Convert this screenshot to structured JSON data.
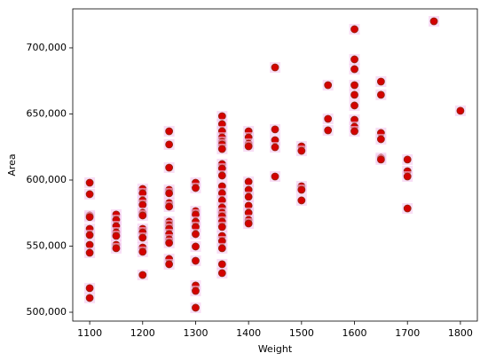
{
  "chart_data": {
    "type": "scatter",
    "x_label": "Weight",
    "y_label": "Area",
    "color": "#d40000",
    "x": [
      1100,
      1100,
      1100,
      1100,
      1100,
      1100,
      1100,
      1100,
      1100,
      1100,
      1150,
      1150,
      1150,
      1150,
      1150,
      1150,
      1150,
      1200,
      1200,
      1200,
      1200,
      1200,
      1200,
      1200,
      1200,
      1200,
      1200,
      1200,
      1200,
      1250,
      1250,
      1250,
      1250,
      1250,
      1250,
      1250,
      1250,
      1250,
      1250,
      1250,
      1250,
      1250,
      1250,
      1250,
      1300,
      1300,
      1300,
      1300,
      1300,
      1300,
      1300,
      1300,
      1300,
      1300,
      1300,
      1300,
      1350,
      1350,
      1350,
      1350,
      1350,
      1350,
      1350,
      1350,
      1350,
      1350,
      1350,
      1350,
      1350,
      1350,
      1350,
      1350,
      1350,
      1350,
      1350,
      1350,
      1350,
      1350,
      1350,
      1400,
      1400,
      1400,
      1400,
      1400,
      1400,
      1400,
      1400,
      1400,
      1400,
      1400,
      1450,
      1450,
      1450,
      1450,
      1450,
      1500,
      1500,
      1500,
      1500,
      1500,
      1550,
      1550,
      1550,
      1600,
      1600,
      1600,
      1600,
      1600,
      1600,
      1600,
      1600,
      1600,
      1650,
      1650,
      1650,
      1650,
      1650,
      1650,
      1700,
      1700,
      1700,
      1700,
      1750,
      1800
    ],
    "values": [
      598000,
      589300,
      573200,
      572000,
      563100,
      558400,
      551000,
      545000,
      518200,
      510800,
      573900,
      569800,
      565100,
      560400,
      557700,
      551000,
      548400,
      593300,
      590000,
      584600,
      581200,
      575200,
      573200,
      563100,
      560400,
      556400,
      549000,
      545700,
      528200,
      636900,
      626900,
      609400,
      592600,
      590000,
      582600,
      579900,
      568500,
      565800,
      563100,
      559100,
      555100,
      552400,
      540300,
      536300,
      598000,
      594000,
      576500,
      573900,
      568500,
      564500,
      559100,
      549700,
      538900,
      520200,
      516100,
      503400,
      648300,
      642300,
      636900,
      632200,
      628900,
      626900,
      623500,
      612100,
      608700,
      603400,
      595300,
      590000,
      584600,
      579200,
      575200,
      572500,
      568500,
      564500,
      557700,
      553700,
      548400,
      536300,
      529600,
      636900,
      632200,
      627500,
      625500,
      598700,
      592600,
      587300,
      580600,
      575200,
      569800,
      567100,
      685200,
      638300,
      630200,
      624800,
      602700,
      625500,
      622100,
      595300,
      592600,
      584600,
      671800,
      646300,
      637600,
      714100,
      691300,
      683900,
      671800,
      664500,
      656400,
      645600,
      640300,
      636900,
      674500,
      664500,
      635600,
      630900,
      616800,
      615500,
      615500,
      606700,
      602700,
      578500,
      720100,
      652400
    ],
    "xlim": [
      1068,
      1832
    ],
    "ylim": [
      493300,
      729500
    ],
    "xticks": [
      1100,
      1200,
      1300,
      1400,
      1500,
      1600,
      1700,
      1800
    ],
    "yticks": [
      {
        "value": 500000,
        "label": "500,000"
      },
      {
        "value": 550000,
        "label": "550,000"
      },
      {
        "value": 600000,
        "label": "600,000"
      },
      {
        "value": 650000,
        "label": "650,000"
      },
      {
        "value": 700000,
        "label": "700,000"
      }
    ]
  }
}
